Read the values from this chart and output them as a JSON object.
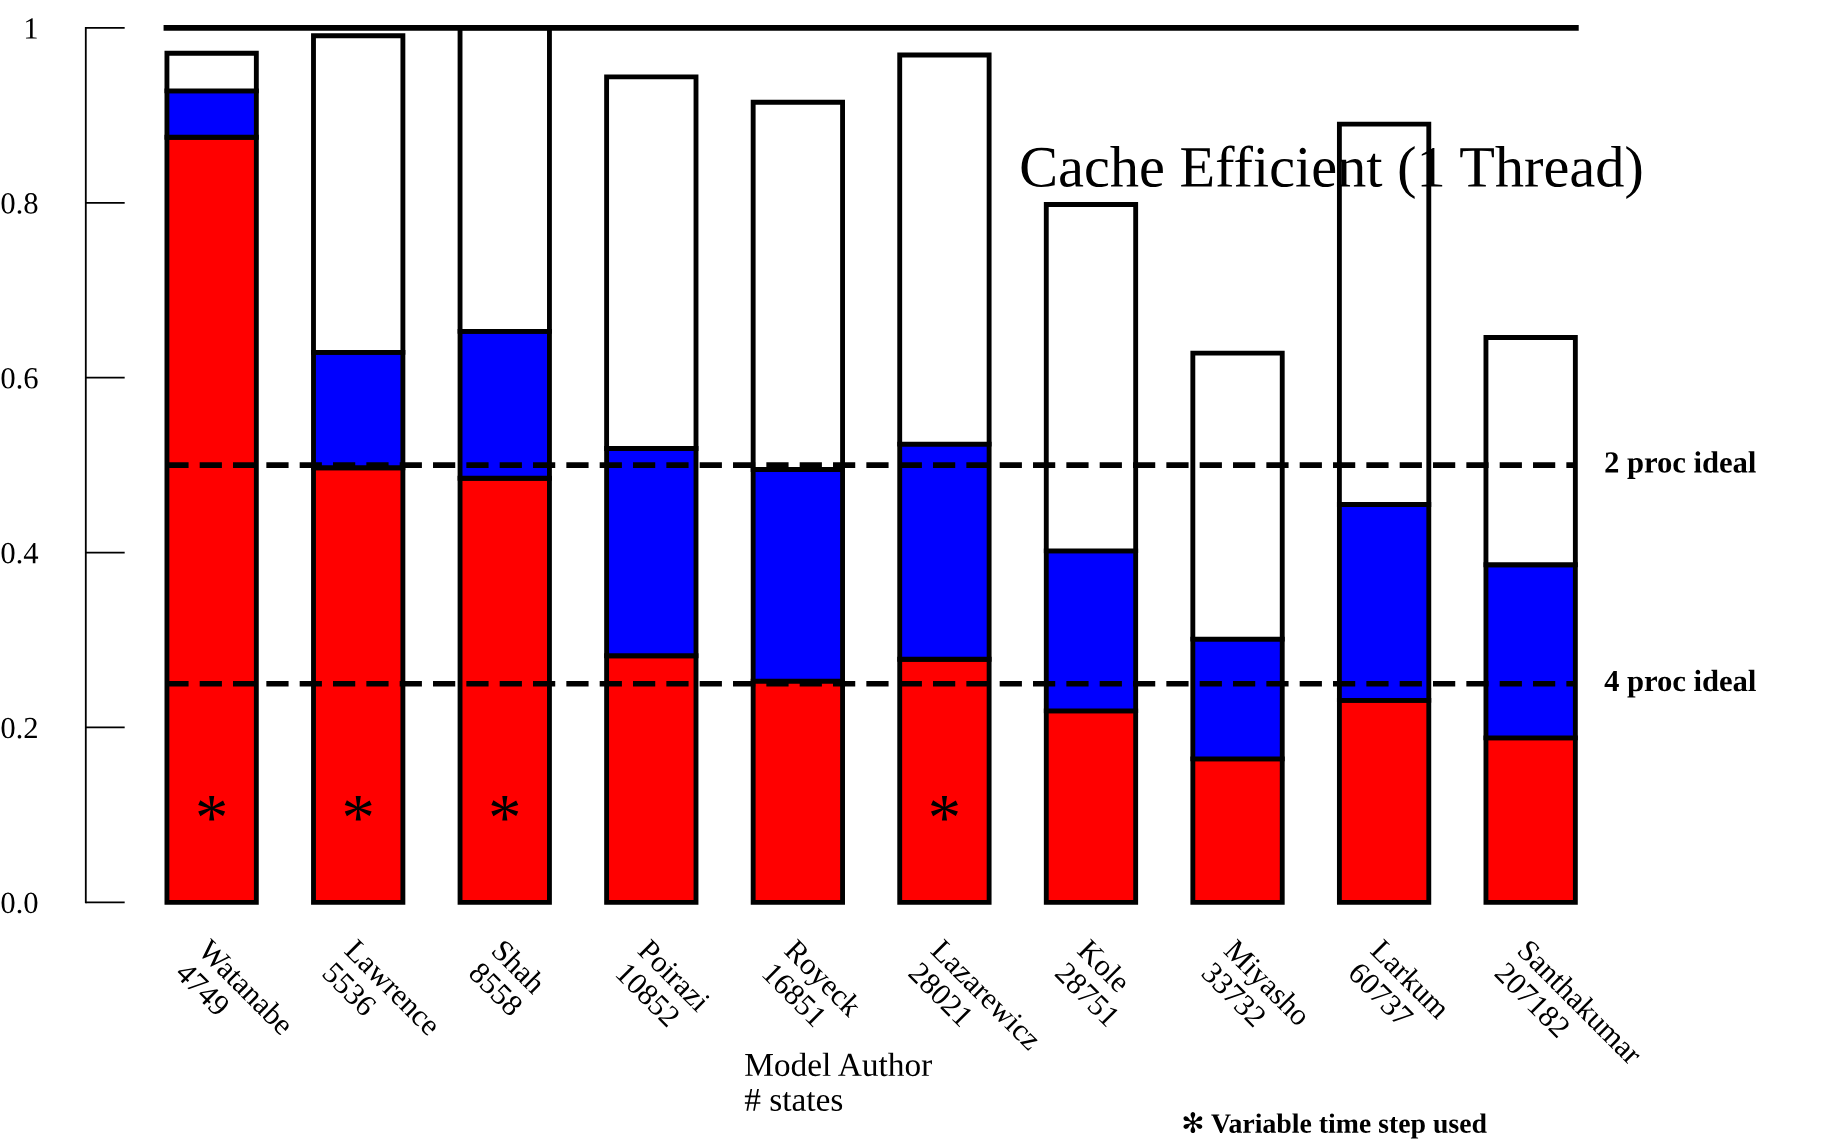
{
  "chart_data": {
    "type": "bar",
    "stacked": true,
    "categories": [
      "Watanabe\n4749",
      "Lawrence\n5536",
      "Shah\n8558",
      "Poirazi\n10852",
      "Royeck\n16851",
      "Lazarewicz\n28021",
      "Kole\n28751",
      "Miyasho\n33732",
      "Larkum\n60737",
      "Santhakumar\n207182"
    ],
    "series": [
      {
        "color": "#ff0000",
        "values": [
          0.875,
          0.497,
          0.485,
          0.282,
          0.253,
          0.278,
          0.219,
          0.164,
          0.231,
          0.188
        ]
      },
      {
        "color": "#0000ff",
        "values": [
          0.053,
          0.132,
          0.168,
          0.237,
          0.242,
          0.246,
          0.183,
          0.137,
          0.224,
          0.198
        ]
      },
      {
        "color": "#ffffff",
        "values": [
          0.043,
          0.362,
          0.347,
          0.425,
          0.42,
          0.445,
          0.396,
          0.327,
          0.435,
          0.26
        ]
      }
    ],
    "xlabel": "Model Author\n# states",
    "ylim": [
      0,
      1
    ],
    "yticks": [
      {
        "value": 0,
        "label": "0.0"
      },
      0.2,
      0.4,
      0.6,
      0.8,
      1
    ],
    "grid": false,
    "legend": false,
    "ref_lines": [
      {
        "axis": "y",
        "value": 1,
        "label": null,
        "line_style": "solid",
        "color": "#000000"
      },
      {
        "axis": "y",
        "value": 0.5,
        "label": "2 proc ideal",
        "line_style": "dashed",
        "color": "#000000"
      },
      {
        "axis": "y",
        "value": 0.25,
        "label": "4 proc ideal",
        "line_style": "dashed",
        "color": "#000000"
      }
    ],
    "annotations": [
      "Cache Efficient (1 Thread)",
      "✻ Variable time step used",
      "*",
      "*",
      "*",
      "*"
    ]
  }
}
